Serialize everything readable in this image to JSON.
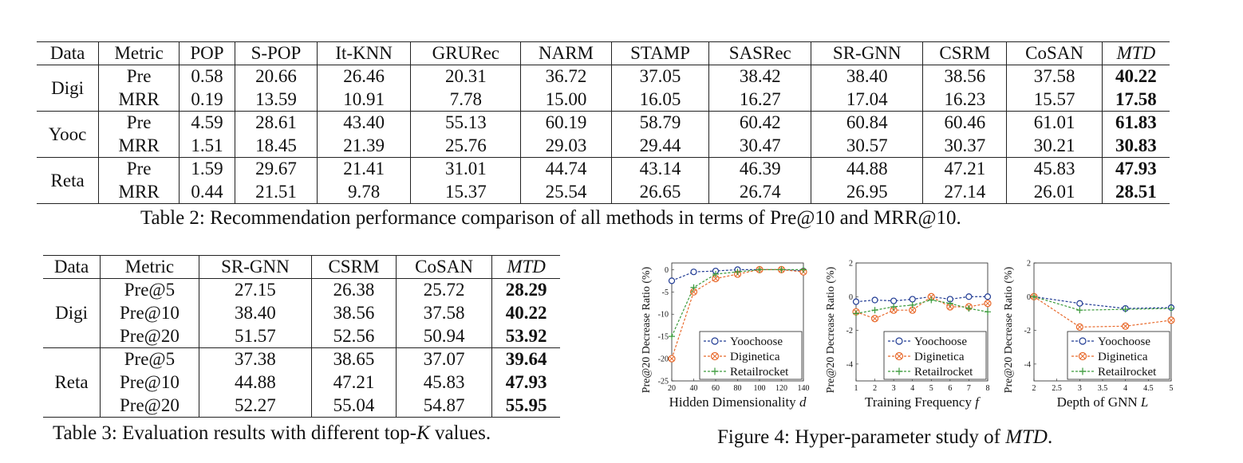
{
  "table2": {
    "header": [
      "Data",
      "Metric",
      "POP",
      "S-POP",
      "It-KNN",
      "GRURec",
      "NARM",
      "STAMP",
      "SASRec",
      "SR-GNN",
      "CSRM",
      "CoSAN",
      "MTD"
    ],
    "groups": [
      {
        "data": "Digi",
        "rows": [
          {
            "metric": "Pre",
            "values": [
              "0.58",
              "20.66",
              "26.46",
              "20.31",
              "36.72",
              "37.05",
              "38.42",
              "38.40",
              "38.56",
              "37.58",
              "40.22"
            ]
          },
          {
            "metric": "MRR",
            "values": [
              "0.19",
              "13.59",
              "10.91",
              "7.78",
              "15.00",
              "16.05",
              "16.27",
              "17.04",
              "16.23",
              "15.57",
              "17.58"
            ]
          }
        ]
      },
      {
        "data": "Yooc",
        "rows": [
          {
            "metric": "Pre",
            "values": [
              "4.59",
              "28.61",
              "43.40",
              "55.13",
              "60.19",
              "58.79",
              "60.42",
              "60.84",
              "60.46",
              "61.01",
              "61.83"
            ]
          },
          {
            "metric": "MRR",
            "values": [
              "1.51",
              "18.45",
              "21.39",
              "25.76",
              "29.03",
              "29.44",
              "30.47",
              "30.57",
              "30.37",
              "30.21",
              "30.83"
            ]
          }
        ]
      },
      {
        "data": "Reta",
        "rows": [
          {
            "metric": "Pre",
            "values": [
              "1.59",
              "29.67",
              "21.41",
              "31.01",
              "44.74",
              "43.14",
              "46.39",
              "44.88",
              "47.21",
              "45.83",
              "47.93"
            ]
          },
          {
            "metric": "MRR",
            "values": [
              "0.44",
              "21.51",
              "9.78",
              "15.37",
              "25.54",
              "26.65",
              "26.74",
              "26.95",
              "27.14",
              "26.01",
              "28.51"
            ]
          }
        ]
      }
    ],
    "caption": "Table 2: Recommendation performance comparison of all methods in terms of Pre@10 and MRR@10."
  },
  "table3": {
    "header": [
      "Data",
      "Metric",
      "SR-GNN",
      "CSRM",
      "CoSAN",
      "MTD"
    ],
    "groups": [
      {
        "data": "Digi",
        "rows": [
          {
            "metric": "Pre@5",
            "values": [
              "27.15",
              "26.38",
              "25.72",
              "28.29"
            ]
          },
          {
            "metric": "Pre@10",
            "values": [
              "38.40",
              "38.56",
              "37.58",
              "40.22"
            ]
          },
          {
            "metric": "Pre@20",
            "values": [
              "51.57",
              "52.56",
              "50.94",
              "53.92"
            ]
          }
        ]
      },
      {
        "data": "Reta",
        "rows": [
          {
            "metric": "Pre@5",
            "values": [
              "37.38",
              "38.65",
              "37.07",
              "39.64"
            ]
          },
          {
            "metric": "Pre@10",
            "values": [
              "44.88",
              "47.21",
              "45.83",
              "47.93"
            ]
          },
          {
            "metric": "Pre@20",
            "values": [
              "52.27",
              "55.04",
              "54.87",
              "55.95"
            ]
          }
        ]
      }
    ],
    "caption_prefix": "Table 3: Evaluation results with different top-",
    "caption_var": "K",
    "caption_suffix": " values."
  },
  "figure4": {
    "caption_prefix": "Figure 4: Hyper-parameter study of ",
    "caption_em": "MTD",
    "caption_suffix": "."
  },
  "chart_data": [
    {
      "type": "line",
      "xlabel": "Hidden Dimensionality d",
      "ylabel": "Pre@20 Decrease Ratio (%)",
      "x": [
        20,
        40,
        60,
        80,
        100,
        120,
        140
      ],
      "xticks": [
        20,
        40,
        60,
        80,
        100,
        120,
        140
      ],
      "yticks": [
        0,
        -5,
        -10,
        -15,
        -20,
        -25
      ],
      "xlim": [
        20,
        140
      ],
      "ylim": [
        -25,
        1.5
      ],
      "legend_position": "bottom-right",
      "series": [
        {
          "name": "Yoochoose",
          "values": [
            -2.5,
            -0.5,
            -0.3,
            0,
            0,
            0,
            -0.3
          ],
          "color": "#1f3a93"
        },
        {
          "name": "Diginetica",
          "values": [
            -20,
            -5,
            -2,
            -1,
            0,
            0,
            -0.5
          ],
          "color": "#e8692b"
        },
        {
          "name": "Retailrocket",
          "values": [
            -15,
            -4,
            -1,
            -0.5,
            0,
            0,
            0
          ],
          "color": "#3a9a3a"
        }
      ]
    },
    {
      "type": "line",
      "xlabel": "Training Frequency f",
      "ylabel": "Pre@20 Decrease Ratio (%)",
      "x": [
        1,
        2,
        3,
        4,
        5,
        6,
        7,
        8
      ],
      "xticks": [
        1,
        2,
        3,
        4,
        5,
        6,
        7,
        8
      ],
      "yticks": [
        2,
        0,
        -2,
        -4
      ],
      "xlim": [
        1,
        8
      ],
      "ylim": [
        -5,
        2
      ],
      "legend_position": "bottom-right",
      "series": [
        {
          "name": "Yoochoose",
          "values": [
            -0.3,
            -0.2,
            -0.25,
            -0.15,
            0,
            -0.15,
            0,
            0
          ],
          "color": "#1f3a93"
        },
        {
          "name": "Diginetica",
          "values": [
            -0.9,
            -1.3,
            -0.8,
            -0.8,
            0,
            -0.6,
            -0.6,
            -0.4
          ],
          "color": "#e8692b"
        },
        {
          "name": "Retailrocket",
          "values": [
            -1,
            -0.8,
            -0.6,
            -0.5,
            -0.2,
            -0.4,
            -0.7,
            -0.9
          ],
          "color": "#3a9a3a"
        }
      ]
    },
    {
      "type": "line",
      "xlabel": "Depth of GNN L",
      "ylabel": "Pre@20 Decrease Ratio (%)",
      "x": [
        2,
        3,
        4,
        5
      ],
      "xticks": [
        2,
        2.5,
        3,
        3.5,
        4,
        4.5,
        5
      ],
      "yticks": [
        2,
        0,
        -2,
        -4
      ],
      "xlim": [
        2,
        5
      ],
      "ylim": [
        -5,
        2
      ],
      "legend_position": "bottom-right",
      "series": [
        {
          "name": "Yoochoose",
          "values": [
            0,
            -0.4,
            -0.7,
            -0.65
          ],
          "color": "#1f3a93"
        },
        {
          "name": "Diginetica",
          "values": [
            0,
            -1.8,
            -1.75,
            -1.4
          ],
          "color": "#e8692b"
        },
        {
          "name": "Retailrocket",
          "values": [
            0,
            -0.8,
            -0.75,
            -0.7
          ],
          "color": "#3a9a3a"
        }
      ]
    }
  ]
}
